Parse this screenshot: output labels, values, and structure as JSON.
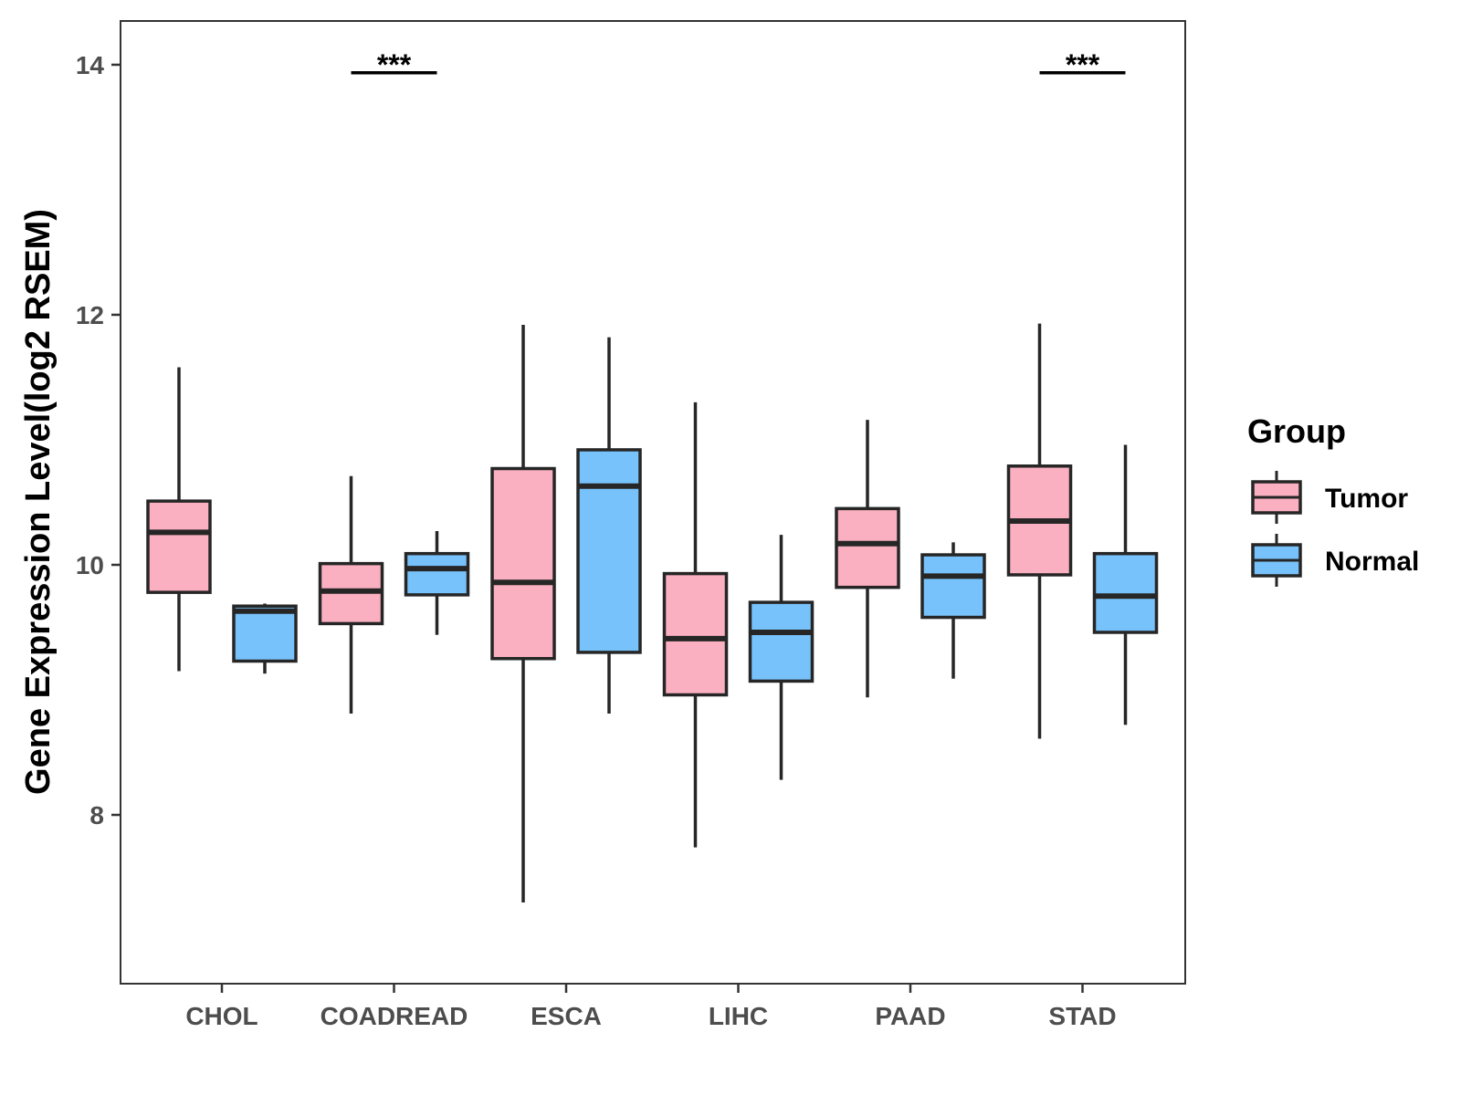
{
  "chart_data": {
    "type": "boxplot",
    "title": "",
    "xlabel": "",
    "ylabel": "Gene Expression Level(log2 RSEM)",
    "ylim": [
      6.65,
      14.35
    ],
    "yticks": [
      8,
      10,
      12,
      14
    ],
    "ytick_labels": [
      "8",
      "10",
      "12",
      "14"
    ],
    "categories": [
      "CHOL",
      "COADREAD",
      "ESCA",
      "LIHC",
      "PAAD",
      "STAD"
    ],
    "legend": {
      "title": "Group",
      "position": "right",
      "items": [
        {
          "key": "tumor",
          "label": "Tumor",
          "color": "#fbb0c1"
        },
        {
          "key": "normal",
          "label": "Normal",
          "color": "#78c2fb"
        }
      ]
    },
    "series": [
      {
        "name": "Tumor",
        "color": "#fbb0c1",
        "boxes": [
          {
            "category": "CHOL",
            "min": 9.15,
            "q1": 9.78,
            "median": 10.26,
            "q3": 10.51,
            "max": 11.58
          },
          {
            "category": "COADREAD",
            "min": 8.81,
            "q1": 9.53,
            "median": 9.79,
            "q3": 10.01,
            "max": 10.71
          },
          {
            "category": "ESCA",
            "min": 7.3,
            "q1": 9.25,
            "median": 9.86,
            "q3": 10.77,
            "max": 11.92
          },
          {
            "category": "LIHC",
            "min": 7.74,
            "q1": 8.96,
            "median": 9.41,
            "q3": 9.93,
            "max": 11.3
          },
          {
            "category": "PAAD",
            "min": 8.94,
            "q1": 9.82,
            "median": 10.17,
            "q3": 10.45,
            "max": 11.16
          },
          {
            "category": "STAD",
            "min": 8.61,
            "q1": 9.92,
            "median": 10.35,
            "q3": 10.79,
            "max": 11.93
          }
        ]
      },
      {
        "name": "Normal",
        "color": "#78c2fb",
        "boxes": [
          {
            "category": "CHOL",
            "min": 9.13,
            "q1": 9.23,
            "median": 9.63,
            "q3": 9.67,
            "max": 9.69
          },
          {
            "category": "COADREAD",
            "min": 9.44,
            "q1": 9.76,
            "median": 9.97,
            "q3": 10.09,
            "max": 10.27
          },
          {
            "category": "ESCA",
            "min": 8.81,
            "q1": 9.3,
            "median": 10.63,
            "q3": 10.92,
            "max": 11.82
          },
          {
            "category": "LIHC",
            "min": 8.28,
            "q1": 9.07,
            "median": 9.46,
            "q3": 9.7,
            "max": 10.24
          },
          {
            "category": "PAAD",
            "min": 9.09,
            "q1": 9.58,
            "median": 9.91,
            "q3": 10.08,
            "max": 10.18
          },
          {
            "category": "STAD",
            "min": 8.72,
            "q1": 9.46,
            "median": 9.75,
            "q3": 10.09,
            "max": 10.96
          }
        ]
      }
    ],
    "annotations": [
      {
        "category": "COADREAD",
        "label": "***",
        "y": 13.95
      },
      {
        "category": "STAD",
        "label": "***",
        "y": 13.95
      }
    ]
  }
}
